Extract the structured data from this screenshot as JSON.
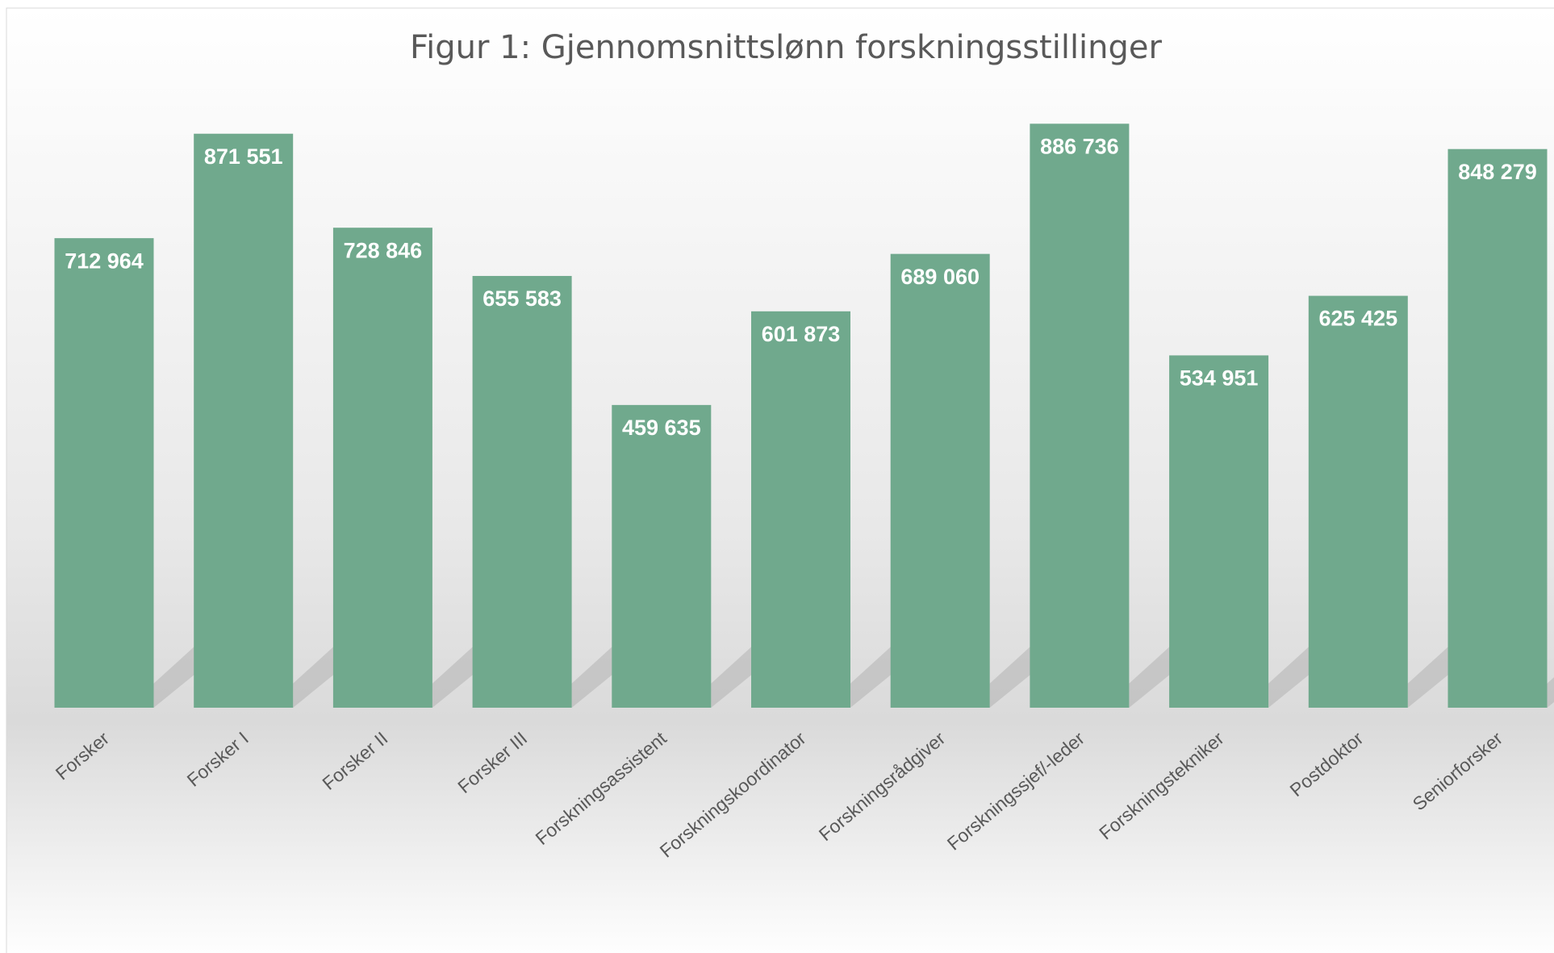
{
  "chart_data": {
    "type": "bar",
    "title": "Figur 1: Gjennomsnittslønn forskningsstillinger",
    "categories": [
      "Forsker",
      "Forsker I",
      "Forsker II",
      "Forsker III",
      "Forskningsassistent",
      "Forskningskoordinator",
      "Forskningsrådgiver",
      "Forskningssjef/-leder",
      "Forskningstekniker",
      "Postdoktor",
      "Seniorforsker"
    ],
    "values": [
      712964,
      871551,
      728846,
      655583,
      459635,
      601873,
      689060,
      886736,
      534951,
      625425,
      848279
    ],
    "value_labels": [
      "712 964",
      "871 551",
      "728 846",
      "655 583",
      "459 635",
      "601 873",
      "689 060",
      "886 736",
      "534 951",
      "625 425",
      "848 279"
    ],
    "color": "#70a98d",
    "ylim": [
      0,
      900000
    ]
  }
}
